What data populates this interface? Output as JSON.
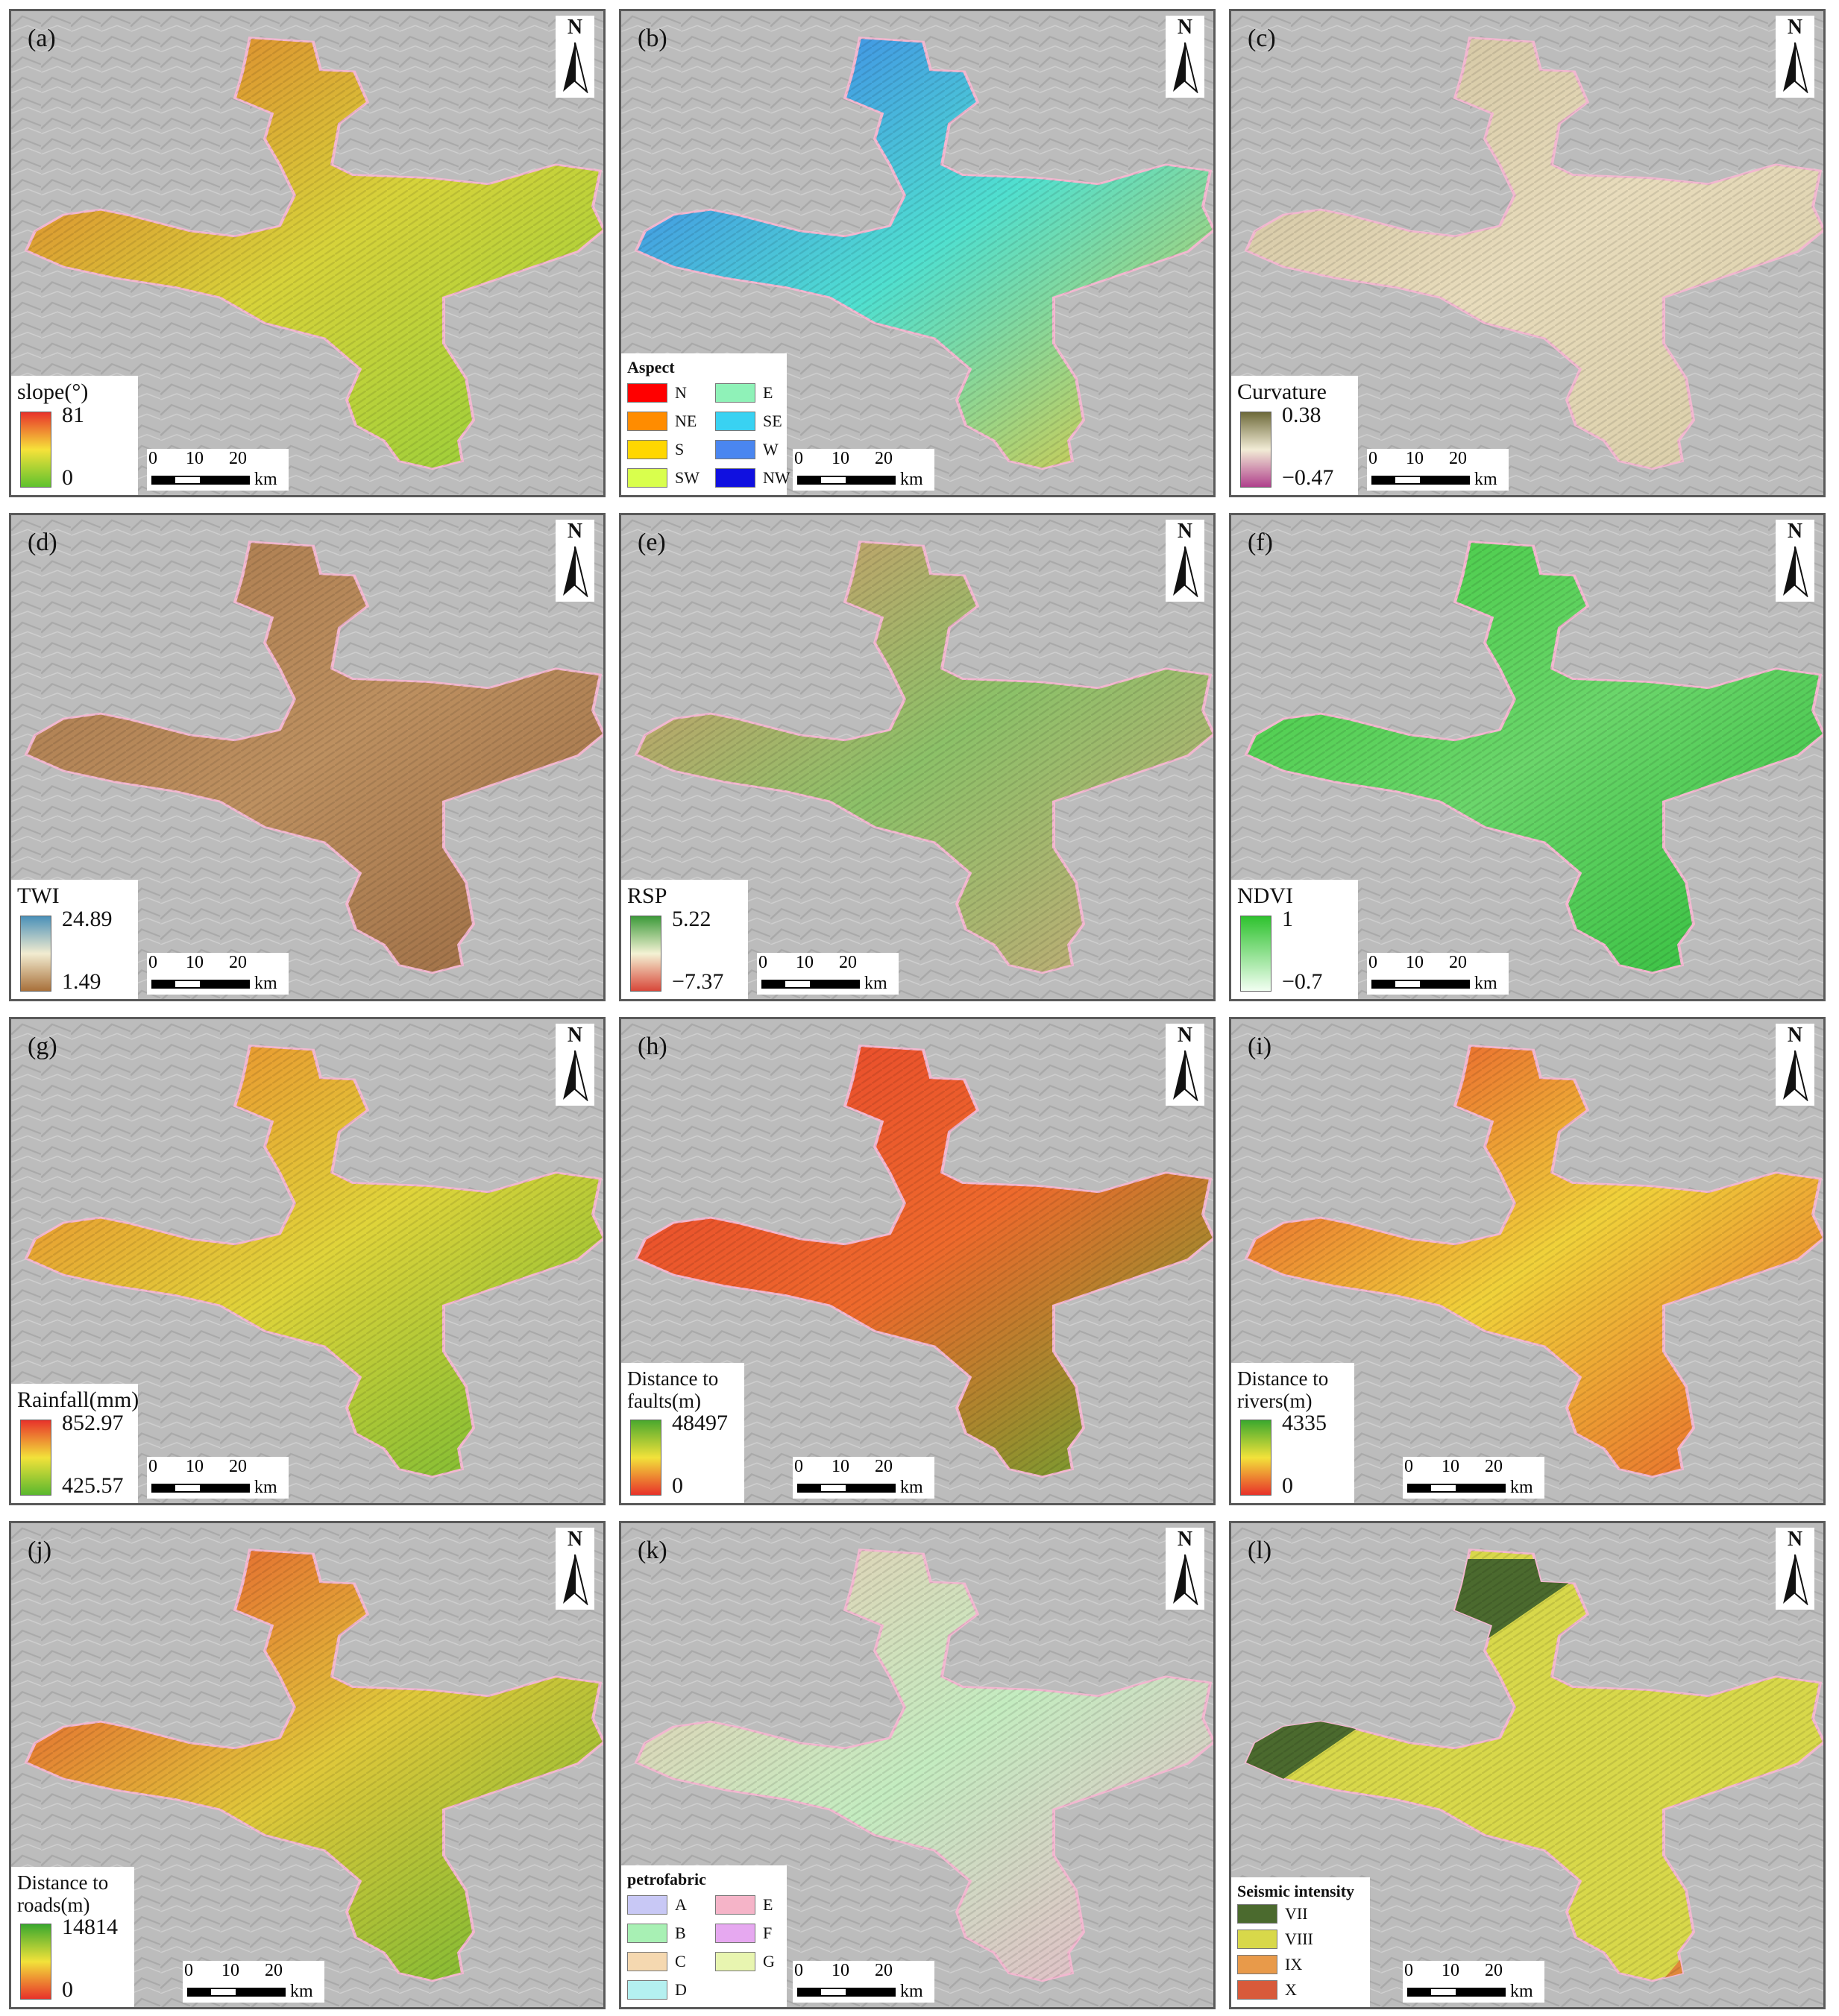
{
  "north_label": "N",
  "scale": {
    "ticks": [
      "0",
      "10",
      "20"
    ],
    "unit": "km"
  },
  "panels": [
    {
      "label": "(a)",
      "legend": {
        "type": "continuous",
        "title": "slope(°)",
        "max": "81",
        "min": "0",
        "colors": [
          "#e8322a",
          "#f6e23a",
          "#5fc22e"
        ]
      },
      "map_colors": [
        "#e1702b",
        "#d7d33a",
        "#8fcf3a"
      ]
    },
    {
      "label": "(b)",
      "legend": {
        "type": "categorical",
        "title": "Aspect",
        "items": [
          {
            "label": "N",
            "color": "#ff0000"
          },
          {
            "label": "E",
            "color": "#8ff2b8"
          },
          {
            "label": "NE",
            "color": "#ff8c00"
          },
          {
            "label": "SE",
            "color": "#39d2f2"
          },
          {
            "label": "S",
            "color": "#ffd700"
          },
          {
            "label": "W",
            "color": "#4a86f0"
          },
          {
            "label": "SW",
            "color": "#d9ff4d"
          },
          {
            "label": "NW",
            "color": "#1010e0"
          }
        ]
      },
      "map_colors": [
        "#3a6ef0",
        "#50e0d0",
        "#e8c83a"
      ]
    },
    {
      "label": "(c)",
      "legend": {
        "type": "continuous",
        "title": "Curvature",
        "max": "0.38",
        "min": "−0.47",
        "colors": [
          "#6e6a3a",
          "#f2ecd6",
          "#b0408c"
        ]
      },
      "map_colors": [
        "#cdbf9a",
        "#e8dcbc",
        "#d8cca6"
      ]
    },
    {
      "label": "(d)",
      "legend": {
        "type": "continuous",
        "title": "TWI",
        "max": "24.89",
        "min": "1.49",
        "colors": [
          "#4a90b8",
          "#f2ecd0",
          "#a8703a"
        ]
      },
      "map_colors": [
        "#a9784c",
        "#bd9060",
        "#9a6a42"
      ]
    },
    {
      "label": "(e)",
      "legend": {
        "type": "continuous",
        "title": "RSP",
        "max": "5.22",
        "min": "−7.37",
        "colors": [
          "#3c9a3a",
          "#f4f2d4",
          "#d8483a"
        ]
      },
      "map_colors": [
        "#d9956c",
        "#8cc168",
        "#c8a878"
      ]
    },
    {
      "label": "(f)",
      "legend": {
        "type": "continuous",
        "title": "NDVI",
        "max": "1",
        "min": "−0.7",
        "colors": [
          "#2ec22e",
          "#f2fff2"
        ]
      },
      "map_colors": [
        "#3fc93f",
        "#6bd66b",
        "#2fbd3a"
      ]
    },
    {
      "label": "(g)",
      "legend": {
        "type": "continuous",
        "title": "Rainfall(mm)",
        "max": "852.97",
        "min": "425.57",
        "colors": [
          "#e8322a",
          "#f2e23a",
          "#5ab82e"
        ]
      },
      "map_colors": [
        "#ee7a2c",
        "#e0d43a",
        "#6ab832"
      ]
    },
    {
      "label": "(h)",
      "legend": {
        "type": "continuous",
        "title": "Distance to faults(m)",
        "max": "48497",
        "min": "0",
        "colors": [
          "#4aa82e",
          "#f2e23a",
          "#e8322a"
        ]
      },
      "map_colors": [
        "#e8402c",
        "#ee6a2c",
        "#5aa830"
      ]
    },
    {
      "label": "(i)",
      "legend": {
        "type": "continuous",
        "title": "Distance to rivers(m)",
        "max": "4335",
        "min": "0",
        "colors": [
          "#3aa82e",
          "#f2e23a",
          "#e8322a"
        ]
      },
      "map_colors": [
        "#e83a2a",
        "#f0d23a",
        "#e85a2a"
      ]
    },
    {
      "label": "(j)",
      "legend": {
        "type": "continuous",
        "title": "Distance to roads(m)",
        "max": "14814",
        "min": "0",
        "colors": [
          "#3aa82e",
          "#f2e23a",
          "#e8322a"
        ]
      },
      "map_colors": [
        "#e8402c",
        "#e0c83a",
        "#6ab832"
      ]
    },
    {
      "label": "(k)",
      "legend": {
        "type": "categorical",
        "title": "petrofabric",
        "items": [
          {
            "label": "A",
            "color": "#c8c8f5"
          },
          {
            "label": "E",
            "color": "#f5b4c8"
          },
          {
            "label": "B",
            "color": "#a8f0b4"
          },
          {
            "label": "F",
            "color": "#e6a8f0"
          },
          {
            "label": "C",
            "color": "#f5d8b0"
          },
          {
            "label": "G",
            "color": "#e8f5b0"
          },
          {
            "label": "D",
            "color": "#b4f0f0"
          }
        ]
      },
      "map_colors": [
        "#ecc8b4",
        "#c4ecc0",
        "#e8b4c8"
      ]
    },
    {
      "label": "(l)",
      "legend": {
        "type": "categorical-list",
        "title": "Seismic intensity",
        "items": [
          {
            "label": "VII",
            "color": "#4b6a2e"
          },
          {
            "label": "VIII",
            "color": "#d8d84a"
          },
          {
            "label": "IX",
            "color": "#e89a4a"
          },
          {
            "label": "X",
            "color": "#d85a3a"
          }
        ]
      },
      "map_colors": [
        "#4b6a2e",
        "#d8d84a",
        "#e0883a"
      ]
    }
  ]
}
